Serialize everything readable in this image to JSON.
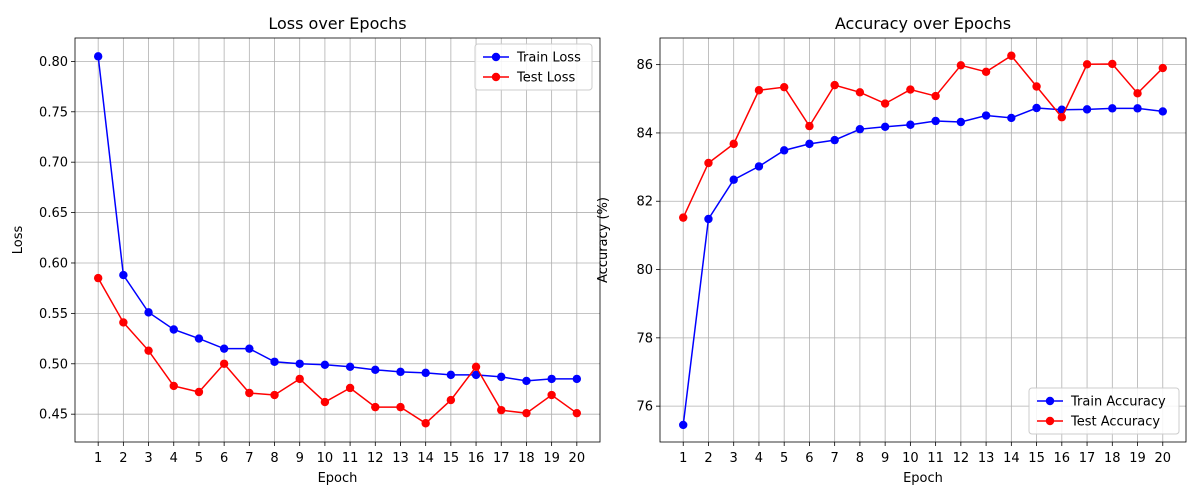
{
  "chart_data": [
    {
      "type": "line",
      "title": "Loss over Epochs",
      "xlabel": "Epoch",
      "ylabel": "Loss",
      "x": [
        1,
        2,
        3,
        4,
        5,
        6,
        7,
        8,
        9,
        10,
        11,
        12,
        13,
        14,
        15,
        16,
        17,
        18,
        19,
        20
      ],
      "xlim": [
        0.08,
        20.92
      ],
      "ylim": [
        0.4224,
        0.8232
      ],
      "yticks": [
        0.45,
        0.5,
        0.55,
        0.6,
        0.65,
        0.7,
        0.75,
        0.8
      ],
      "ytick_labels": [
        "0.45",
        "0.50",
        "0.55",
        "0.60",
        "0.65",
        "0.70",
        "0.75",
        "0.80"
      ],
      "grid": true,
      "legend_position": "top-right",
      "series": [
        {
          "name": "Train Loss",
          "color": "#0000ff",
          "values": [
            0.805,
            0.588,
            0.551,
            0.534,
            0.525,
            0.515,
            0.515,
            0.502,
            0.5,
            0.499,
            0.497,
            0.494,
            0.492,
            0.491,
            0.489,
            0.489,
            0.487,
            0.483,
            0.485,
            0.485
          ]
        },
        {
          "name": "Test Loss",
          "color": "#ff0000",
          "values": [
            0.585,
            0.541,
            0.513,
            0.478,
            0.472,
            0.5,
            0.471,
            0.469,
            0.485,
            0.462,
            0.476,
            0.457,
            0.457,
            0.441,
            0.464,
            0.497,
            0.454,
            0.451,
            0.469,
            0.451
          ]
        }
      ]
    },
    {
      "type": "line",
      "title": "Accuracy over Epochs",
      "xlabel": "Epoch",
      "ylabel": "Accuracy (%)",
      "x": [
        1,
        2,
        3,
        4,
        5,
        6,
        7,
        8,
        9,
        10,
        11,
        12,
        13,
        14,
        15,
        16,
        17,
        18,
        19,
        20
      ],
      "xlim": [
        0.08,
        20.92
      ],
      "ylim": [
        74.95,
        86.78
      ],
      "yticks": [
        76,
        78,
        80,
        82,
        84,
        86
      ],
      "ytick_labels": [
        "76",
        "78",
        "80",
        "82",
        "84",
        "86"
      ],
      "grid": true,
      "legend_position": "bottom-right",
      "series": [
        {
          "name": "Train Accuracy",
          "color": "#0000ff",
          "values": [
            75.45,
            81.48,
            82.63,
            83.02,
            83.49,
            83.68,
            83.79,
            84.11,
            84.18,
            84.24,
            84.35,
            84.32,
            84.51,
            84.44,
            84.73,
            84.68,
            84.69,
            84.72,
            84.72,
            84.63
          ]
        },
        {
          "name": "Test Accuracy",
          "color": "#ff0000",
          "values": [
            81.52,
            83.12,
            83.68,
            85.25,
            85.34,
            84.2,
            85.4,
            85.19,
            84.86,
            85.27,
            85.08,
            85.98,
            85.79,
            86.26,
            85.36,
            84.46,
            86.01,
            86.02,
            85.16,
            85.9
          ]
        }
      ]
    }
  ]
}
